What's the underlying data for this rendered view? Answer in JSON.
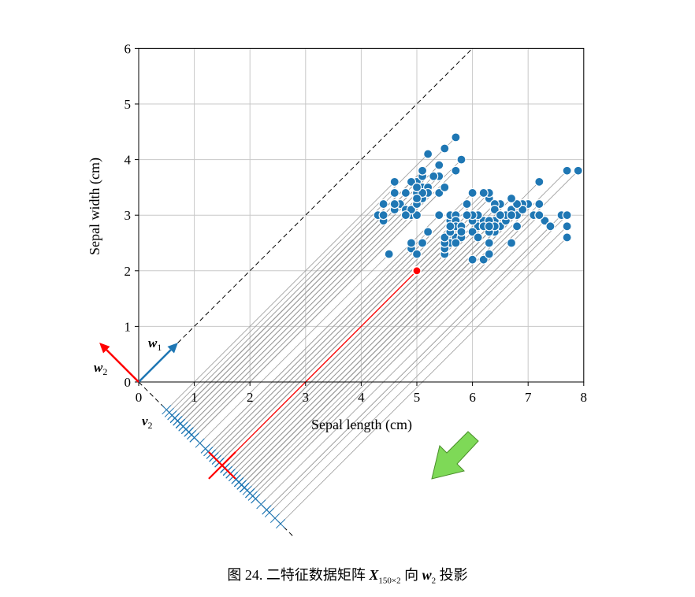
{
  "caption": {
    "prefix": "图 24. 二特征数据矩阵 ",
    "matrix": "X",
    "matrix_sub": "150×2",
    "middle": " 向 ",
    "vector": "w",
    "vector_sub": "2",
    "suffix": " 投影"
  },
  "labels": {
    "w1": "w",
    "w1_sub": "1",
    "w2": "w",
    "w2_sub": "2",
    "v2": "v",
    "v2_sub": "2"
  },
  "colors": {
    "points": "#1f77b4",
    "highlight": "#ff0000",
    "w1_arrow": "#1f77b4",
    "w2_arrow": "#ff0000",
    "projection_lines": "#9a9a9a",
    "grid": "#c8c8c8",
    "hint_arrow": "#7ed957"
  },
  "chart_data": {
    "type": "scatter",
    "xlabel": "Sepal length (cm)",
    "ylabel": "Sepal width (cm)",
    "xlim": [
      0,
      8
    ],
    "ylim": [
      0,
      6
    ],
    "xticks": [
      0,
      1,
      2,
      3,
      4,
      5,
      6,
      7,
      8
    ],
    "yticks": [
      0,
      1,
      2,
      3,
      4,
      5,
      6
    ],
    "grid": true,
    "w1": [
      0.7071,
      0.7071
    ],
    "w2": [
      -0.7071,
      0.7071
    ],
    "projection_direction": "w2",
    "highlight_point": [
      5.0,
      2.0
    ],
    "series": [
      {
        "points": [
          [
            5.1,
            3.5
          ],
          [
            4.9,
            3.0
          ],
          [
            4.7,
            3.2
          ],
          [
            4.6,
            3.1
          ],
          [
            5.0,
            3.6
          ],
          [
            5.4,
            3.9
          ],
          [
            4.6,
            3.4
          ],
          [
            5.0,
            3.4
          ],
          [
            4.4,
            2.9
          ],
          [
            4.9,
            3.1
          ],
          [
            5.4,
            3.7
          ],
          [
            4.8,
            3.4
          ],
          [
            4.8,
            3.0
          ],
          [
            4.3,
            3.0
          ],
          [
            5.8,
            4.0
          ],
          [
            5.7,
            4.4
          ],
          [
            5.4,
            3.9
          ],
          [
            5.1,
            3.5
          ],
          [
            5.7,
            3.8
          ],
          [
            5.1,
            3.8
          ],
          [
            5.4,
            3.4
          ],
          [
            5.1,
            3.7
          ],
          [
            4.6,
            3.6
          ],
          [
            5.1,
            3.3
          ],
          [
            4.8,
            3.4
          ],
          [
            5.0,
            3.0
          ],
          [
            5.0,
            3.4
          ],
          [
            5.2,
            3.5
          ],
          [
            5.2,
            3.4
          ],
          [
            4.7,
            3.2
          ],
          [
            4.8,
            3.1
          ],
          [
            5.4,
            3.4
          ],
          [
            5.2,
            4.1
          ],
          [
            5.5,
            4.2
          ],
          [
            4.9,
            3.1
          ],
          [
            5.0,
            3.2
          ],
          [
            5.5,
            3.5
          ],
          [
            4.9,
            3.6
          ],
          [
            4.4,
            3.0
          ],
          [
            5.1,
            3.4
          ],
          [
            5.0,
            3.5
          ],
          [
            4.5,
            2.3
          ],
          [
            4.4,
            3.2
          ],
          [
            5.0,
            3.5
          ],
          [
            5.1,
            3.8
          ],
          [
            4.8,
            3.0
          ],
          [
            5.1,
            3.8
          ],
          [
            4.6,
            3.2
          ],
          [
            5.3,
            3.7
          ],
          [
            5.0,
            3.3
          ],
          [
            7.0,
            3.2
          ],
          [
            6.4,
            3.2
          ],
          [
            6.9,
            3.1
          ],
          [
            5.5,
            2.3
          ],
          [
            6.5,
            2.8
          ],
          [
            5.7,
            2.8
          ],
          [
            6.3,
            3.3
          ],
          [
            4.9,
            2.4
          ],
          [
            6.6,
            2.9
          ],
          [
            5.2,
            2.7
          ],
          [
            5.0,
            2.0
          ],
          [
            5.9,
            3.0
          ],
          [
            6.0,
            2.2
          ],
          [
            6.1,
            2.9
          ],
          [
            5.6,
            2.9
          ],
          [
            6.7,
            3.1
          ],
          [
            5.6,
            3.0
          ],
          [
            5.8,
            2.7
          ],
          [
            6.2,
            2.2
          ],
          [
            5.6,
            2.5
          ],
          [
            5.9,
            3.2
          ],
          [
            6.1,
            2.8
          ],
          [
            6.3,
            2.5
          ],
          [
            6.1,
            2.8
          ],
          [
            6.4,
            2.9
          ],
          [
            6.6,
            3.0
          ],
          [
            6.8,
            2.8
          ],
          [
            6.7,
            3.0
          ],
          [
            6.0,
            2.9
          ],
          [
            5.7,
            2.6
          ],
          [
            5.5,
            2.4
          ],
          [
            5.5,
            2.4
          ],
          [
            5.8,
            2.7
          ],
          [
            6.0,
            2.7
          ],
          [
            5.4,
            3.0
          ],
          [
            6.0,
            3.4
          ],
          [
            6.7,
            3.1
          ],
          [
            6.3,
            2.3
          ],
          [
            5.6,
            3.0
          ],
          [
            5.5,
            2.5
          ],
          [
            5.5,
            2.6
          ],
          [
            6.1,
            3.0
          ],
          [
            5.8,
            2.6
          ],
          [
            5.0,
            2.3
          ],
          [
            5.6,
            2.7
          ],
          [
            5.7,
            3.0
          ],
          [
            5.7,
            2.9
          ],
          [
            6.2,
            2.9
          ],
          [
            5.1,
            2.5
          ],
          [
            5.7,
            2.8
          ],
          [
            6.3,
            3.3
          ],
          [
            5.8,
            2.7
          ],
          [
            7.1,
            3.0
          ],
          [
            6.3,
            2.9
          ],
          [
            6.5,
            3.0
          ],
          [
            7.6,
            3.0
          ],
          [
            4.9,
            2.5
          ],
          [
            7.3,
            2.9
          ],
          [
            6.7,
            2.5
          ],
          [
            7.2,
            3.6
          ],
          [
            6.5,
            3.2
          ],
          [
            6.4,
            2.7
          ],
          [
            6.8,
            3.0
          ],
          [
            5.7,
            2.5
          ],
          [
            5.8,
            2.8
          ],
          [
            6.4,
            3.2
          ],
          [
            6.5,
            3.0
          ],
          [
            7.7,
            3.8
          ],
          [
            7.7,
            2.6
          ],
          [
            6.0,
            2.2
          ],
          [
            6.9,
            3.2
          ],
          [
            5.6,
            2.8
          ],
          [
            7.7,
            2.8
          ],
          [
            6.3,
            2.7
          ],
          [
            6.7,
            3.3
          ],
          [
            7.2,
            3.2
          ],
          [
            6.2,
            2.8
          ],
          [
            6.1,
            3.0
          ],
          [
            6.4,
            2.8
          ],
          [
            7.2,
            3.0
          ],
          [
            7.4,
            2.8
          ],
          [
            7.9,
            3.8
          ],
          [
            6.4,
            2.8
          ],
          [
            6.3,
            2.8
          ],
          [
            6.1,
            2.6
          ],
          [
            7.7,
            3.0
          ],
          [
            6.3,
            3.4
          ],
          [
            6.4,
            3.1
          ],
          [
            6.0,
            3.0
          ],
          [
            6.9,
            3.1
          ],
          [
            6.7,
            3.1
          ],
          [
            6.9,
            3.1
          ],
          [
            5.8,
            2.7
          ],
          [
            6.8,
            3.2
          ],
          [
            6.7,
            3.3
          ],
          [
            6.7,
            3.0
          ],
          [
            6.3,
            2.5
          ],
          [
            6.5,
            3.0
          ],
          [
            6.2,
            3.4
          ],
          [
            5.9,
            3.0
          ]
        ]
      }
    ]
  }
}
